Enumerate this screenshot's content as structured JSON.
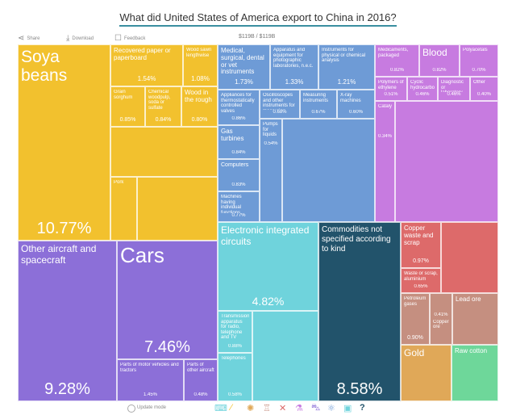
{
  "title": "What did United States of America export to China in 2016?",
  "toolbar": {
    "share": "Share",
    "download": "Download",
    "feedback": "Feedback",
    "total": "$119B / $119B"
  },
  "tiles": {
    "soya": {
      "label": "Soya beans",
      "pct": "10.77%"
    },
    "paper": {
      "label": "Recovered paper or paperboard",
      "pct": "1.54%"
    },
    "sawn": {
      "label": "Wood sawn lengthwise",
      "pct": "1.08%"
    },
    "sorghum": {
      "label": "Grain sorghum",
      "pct": "0.85%"
    },
    "pulp": {
      "label": "Chemical woodpulp, soda or sulfate",
      "pct": "0.84%"
    },
    "wood": {
      "label": "Wood in the rough",
      "pct": "0.80%"
    },
    "pork": {
      "label": "Pork"
    },
    "medical": {
      "label": "Medical, surgical, dental or vet instruments",
      "pct": "1.73%"
    },
    "photo": {
      "label": "Apparatus and equipment for photographic laboratories, n.e.c.",
      "pct": "1.33%"
    },
    "instr": {
      "label": "Instruments for physical or chemical analysis",
      "pct": "1.21%"
    },
    "valves": {
      "label": "Appliances for thermostatically controlled valves",
      "pct": "0.86%"
    },
    "osc": {
      "label": "Oscilloscopes and other instruments for measuring electricity",
      "pct": "0.68%"
    },
    "measuring": {
      "label": "Measuring instruments",
      "pct": "0.67%"
    },
    "xray": {
      "label": "X-ray machines",
      "pct": "0.60%"
    },
    "gas": {
      "label": "Gas turbines",
      "pct": "0.84%"
    },
    "computers": {
      "label": "Computers",
      "pct": "0.83%"
    },
    "machines": {
      "label": "Machines having individual functions",
      "pct": "0.77%"
    },
    "pumps": {
      "label": "Pumps for liquids",
      "pct": "0.54%"
    },
    "medic": {
      "label": "Medicaments, packaged",
      "pct": "0.82%"
    },
    "blood": {
      "label": "Blood",
      "pct": "0.82%"
    },
    "poly": {
      "label": "Polyacetals",
      "pct": "0.70%"
    },
    "ethyl": {
      "label": "Polymers of ethylene",
      "pct": "0.51%"
    },
    "cyclic": {
      "label": "Cyclic hydrocarbons",
      "pct": "0.46%"
    },
    "diag": {
      "label": "Diagnostic or laboratory reagents",
      "pct": "0.46%"
    },
    "other": {
      "label": "Other",
      "pct": "0.40%"
    },
    "catalyst": {
      "label": "Catalysts",
      "pct": "0.34%"
    },
    "aircraft": {
      "label": "Other aircraft and spacecraft",
      "pct": "9.28%"
    },
    "cars": {
      "label": "Cars",
      "pct": "7.46%"
    },
    "parts": {
      "label": "Parts of motor vehicles and tractors",
      "pct": "1.45%"
    },
    "aparts": {
      "label": "Parts of other aircraft",
      "pct": "0.48%"
    },
    "eic": {
      "label": "Electronic integrated circuits",
      "pct": "4.82%"
    },
    "trans": {
      "label": "Transmission apparatus for radio, telephone and TV",
      "pct": "0.88%"
    },
    "tele": {
      "label": "Telephones",
      "pct": "0.58%"
    },
    "commod": {
      "label": "Commodities not specified according to kind",
      "pct": "8.58%"
    },
    "copper": {
      "label": "Copper waste and scrap",
      "pct": "0.97%"
    },
    "alum": {
      "label": "Waste or scrap, aluminium",
      "pct": "0.65%"
    },
    "petro": {
      "label": "Petroleum gases",
      "pct": "0.90%"
    },
    "lead": {
      "label": "Lead ore",
      "pct": "0.41%"
    },
    "cuore": {
      "label": "Copper ore"
    },
    "gold": {
      "label": "Gold"
    },
    "cotton": {
      "label": "Raw cotton"
    }
  },
  "footer": {
    "update_mode": "Update mode",
    "help": "?"
  },
  "colors": {
    "yellow": "#f2c12e",
    "blue": "#6e9bd6",
    "purple": "#c77be0",
    "violet": "#8c6fd8",
    "cyan": "#6fd3dc",
    "teal": "#22536b",
    "red": "#dd6a6a",
    "brown": "#c58f80",
    "gold": "#e0a858",
    "green": "#6ed79a"
  }
}
